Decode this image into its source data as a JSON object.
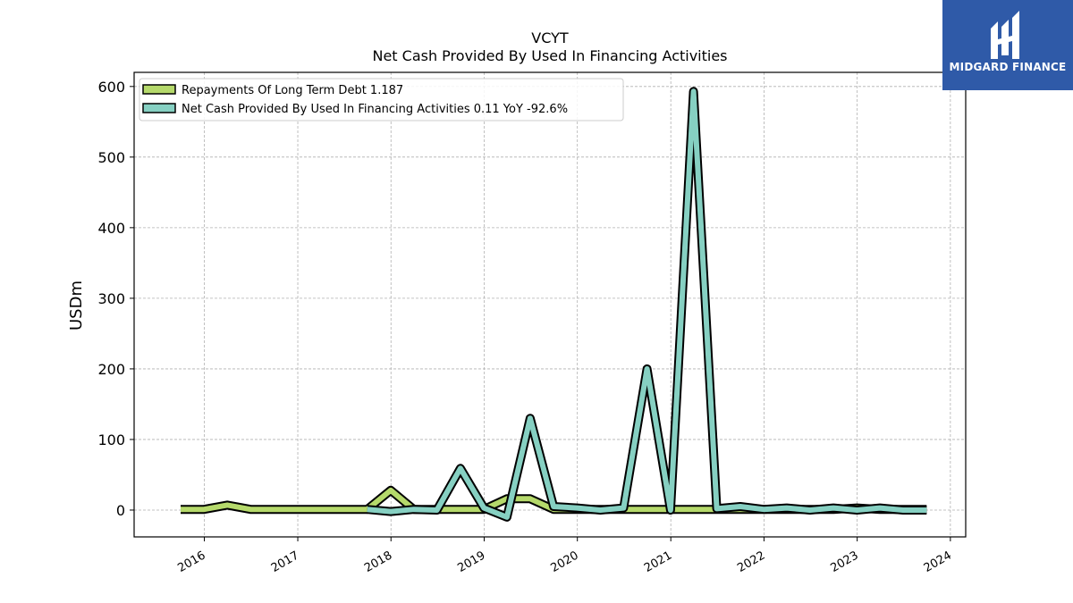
{
  "chart_data": {
    "type": "line",
    "title": "VCYT",
    "subtitle": "Net Cash Provided By Used In Financing Activities",
    "ylabel": "USDm",
    "xlabel": "",
    "xlim": [
      "2015-04-01",
      "2024-03-01"
    ],
    "ylim": [
      -38,
      620
    ],
    "grid": true,
    "legend_position": "top-left",
    "x_ticks": [
      "2016",
      "2017",
      "2018",
      "2019",
      "2020",
      "2021",
      "2022",
      "2023",
      "2024"
    ],
    "y_ticks": [
      0,
      100,
      200,
      300,
      400,
      500,
      600
    ],
    "series": [
      {
        "name": "Repayments Of Long Term Debt",
        "legend_label": "Repayments Of Long Term Debt  1.187",
        "color": "#b5d96b",
        "points": [
          [
            "2015-09-30",
            1
          ],
          [
            "2015-12-31",
            1
          ],
          [
            "2016-03-31",
            7
          ],
          [
            "2016-06-30",
            1
          ],
          [
            "2016-09-30",
            1
          ],
          [
            "2016-12-31",
            1
          ],
          [
            "2017-03-31",
            1
          ],
          [
            "2017-06-30",
            1
          ],
          [
            "2017-09-30",
            1
          ],
          [
            "2017-12-31",
            28
          ],
          [
            "2018-03-31",
            1
          ],
          [
            "2018-06-30",
            1
          ],
          [
            "2018-09-30",
            1
          ],
          [
            "2018-12-31",
            1
          ],
          [
            "2019-03-31",
            16
          ],
          [
            "2019-06-30",
            16
          ],
          [
            "2019-09-30",
            1
          ],
          [
            "2019-12-31",
            1
          ],
          [
            "2020-03-31",
            1
          ],
          [
            "2020-06-30",
            1
          ],
          [
            "2020-09-30",
            1
          ],
          [
            "2020-12-31",
            1
          ],
          [
            "2021-03-31",
            1
          ],
          [
            "2021-06-30",
            1
          ],
          [
            "2021-09-30",
            1
          ],
          [
            "2021-12-31",
            1
          ],
          [
            "2022-03-31",
            1
          ],
          [
            "2022-06-30",
            1
          ],
          [
            "2022-09-30",
            1
          ],
          [
            "2022-12-31",
            3
          ],
          [
            "2023-03-31",
            1
          ],
          [
            "2023-06-30",
            1
          ],
          [
            "2023-09-30",
            1
          ]
        ]
      },
      {
        "name": "Net Cash Provided By Used In Financing Activities",
        "legend_label": "Net Cash Provided By Used In Financing Activities  0.11 YoY -92.6%",
        "color": "#86d0c2",
        "points": [
          [
            "2017-09-30",
            1
          ],
          [
            "2017-12-31",
            -2
          ],
          [
            "2018-03-31",
            1
          ],
          [
            "2018-06-30",
            0
          ],
          [
            "2018-09-30",
            59
          ],
          [
            "2018-12-31",
            3
          ],
          [
            "2019-03-31",
            -10
          ],
          [
            "2019-06-30",
            130
          ],
          [
            "2019-09-30",
            5
          ],
          [
            "2019-12-31",
            3
          ],
          [
            "2020-03-31",
            0
          ],
          [
            "2020-06-30",
            3
          ],
          [
            "2020-09-30",
            200
          ],
          [
            "2020-12-31",
            0
          ],
          [
            "2021-03-31",
            593
          ],
          [
            "2021-06-30",
            2
          ],
          [
            "2021-09-30",
            5
          ],
          [
            "2021-12-31",
            1
          ],
          [
            "2022-03-31",
            3
          ],
          [
            "2022-06-30",
            0
          ],
          [
            "2022-09-30",
            3
          ],
          [
            "2022-12-31",
            0
          ],
          [
            "2023-03-31",
            3
          ],
          [
            "2023-06-30",
            0
          ],
          [
            "2023-09-30",
            0
          ]
        ]
      }
    ]
  },
  "logo": {
    "text": "MIDGARD FINANCE",
    "color": "#2f5aa8"
  }
}
